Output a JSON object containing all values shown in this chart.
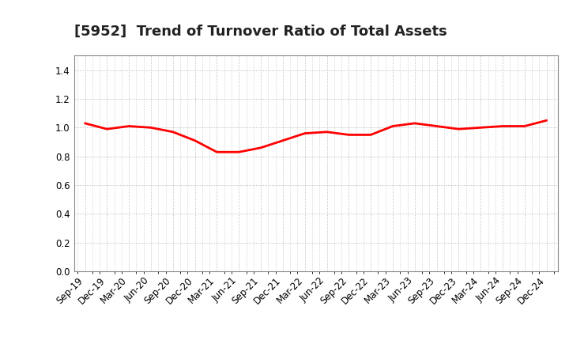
{
  "title": "[5952]  Trend of Turnover Ratio of Total Assets",
  "x_labels": [
    "Sep-19",
    "Dec-19",
    "Mar-20",
    "Jun-20",
    "Sep-20",
    "Dec-20",
    "Mar-21",
    "Jun-21",
    "Sep-21",
    "Dec-21",
    "Mar-22",
    "Jun-22",
    "Sep-22",
    "Dec-22",
    "Mar-23",
    "Jun-23",
    "Sep-23",
    "Dec-23",
    "Mar-24",
    "Jun-24",
    "Sep-24",
    "Dec-24"
  ],
  "y_values": [
    1.03,
    0.99,
    1.01,
    1.0,
    0.97,
    0.91,
    0.83,
    0.83,
    0.86,
    0.91,
    0.96,
    0.97,
    0.95,
    0.95,
    1.01,
    1.03,
    1.01,
    0.99,
    1.0,
    1.01,
    1.01,
    1.05
  ],
  "line_color": "#ff0000",
  "line_width": 2.0,
  "ylim": [
    0.0,
    1.5
  ],
  "yticks": [
    0.0,
    0.2,
    0.4,
    0.6,
    0.8,
    1.0,
    1.2,
    1.4
  ],
  "bg_color": "#ffffff",
  "plot_bg_color": "#ffffff",
  "grid_color": "#aaaaaa",
  "title_fontsize": 13,
  "tick_fontsize": 8.5
}
